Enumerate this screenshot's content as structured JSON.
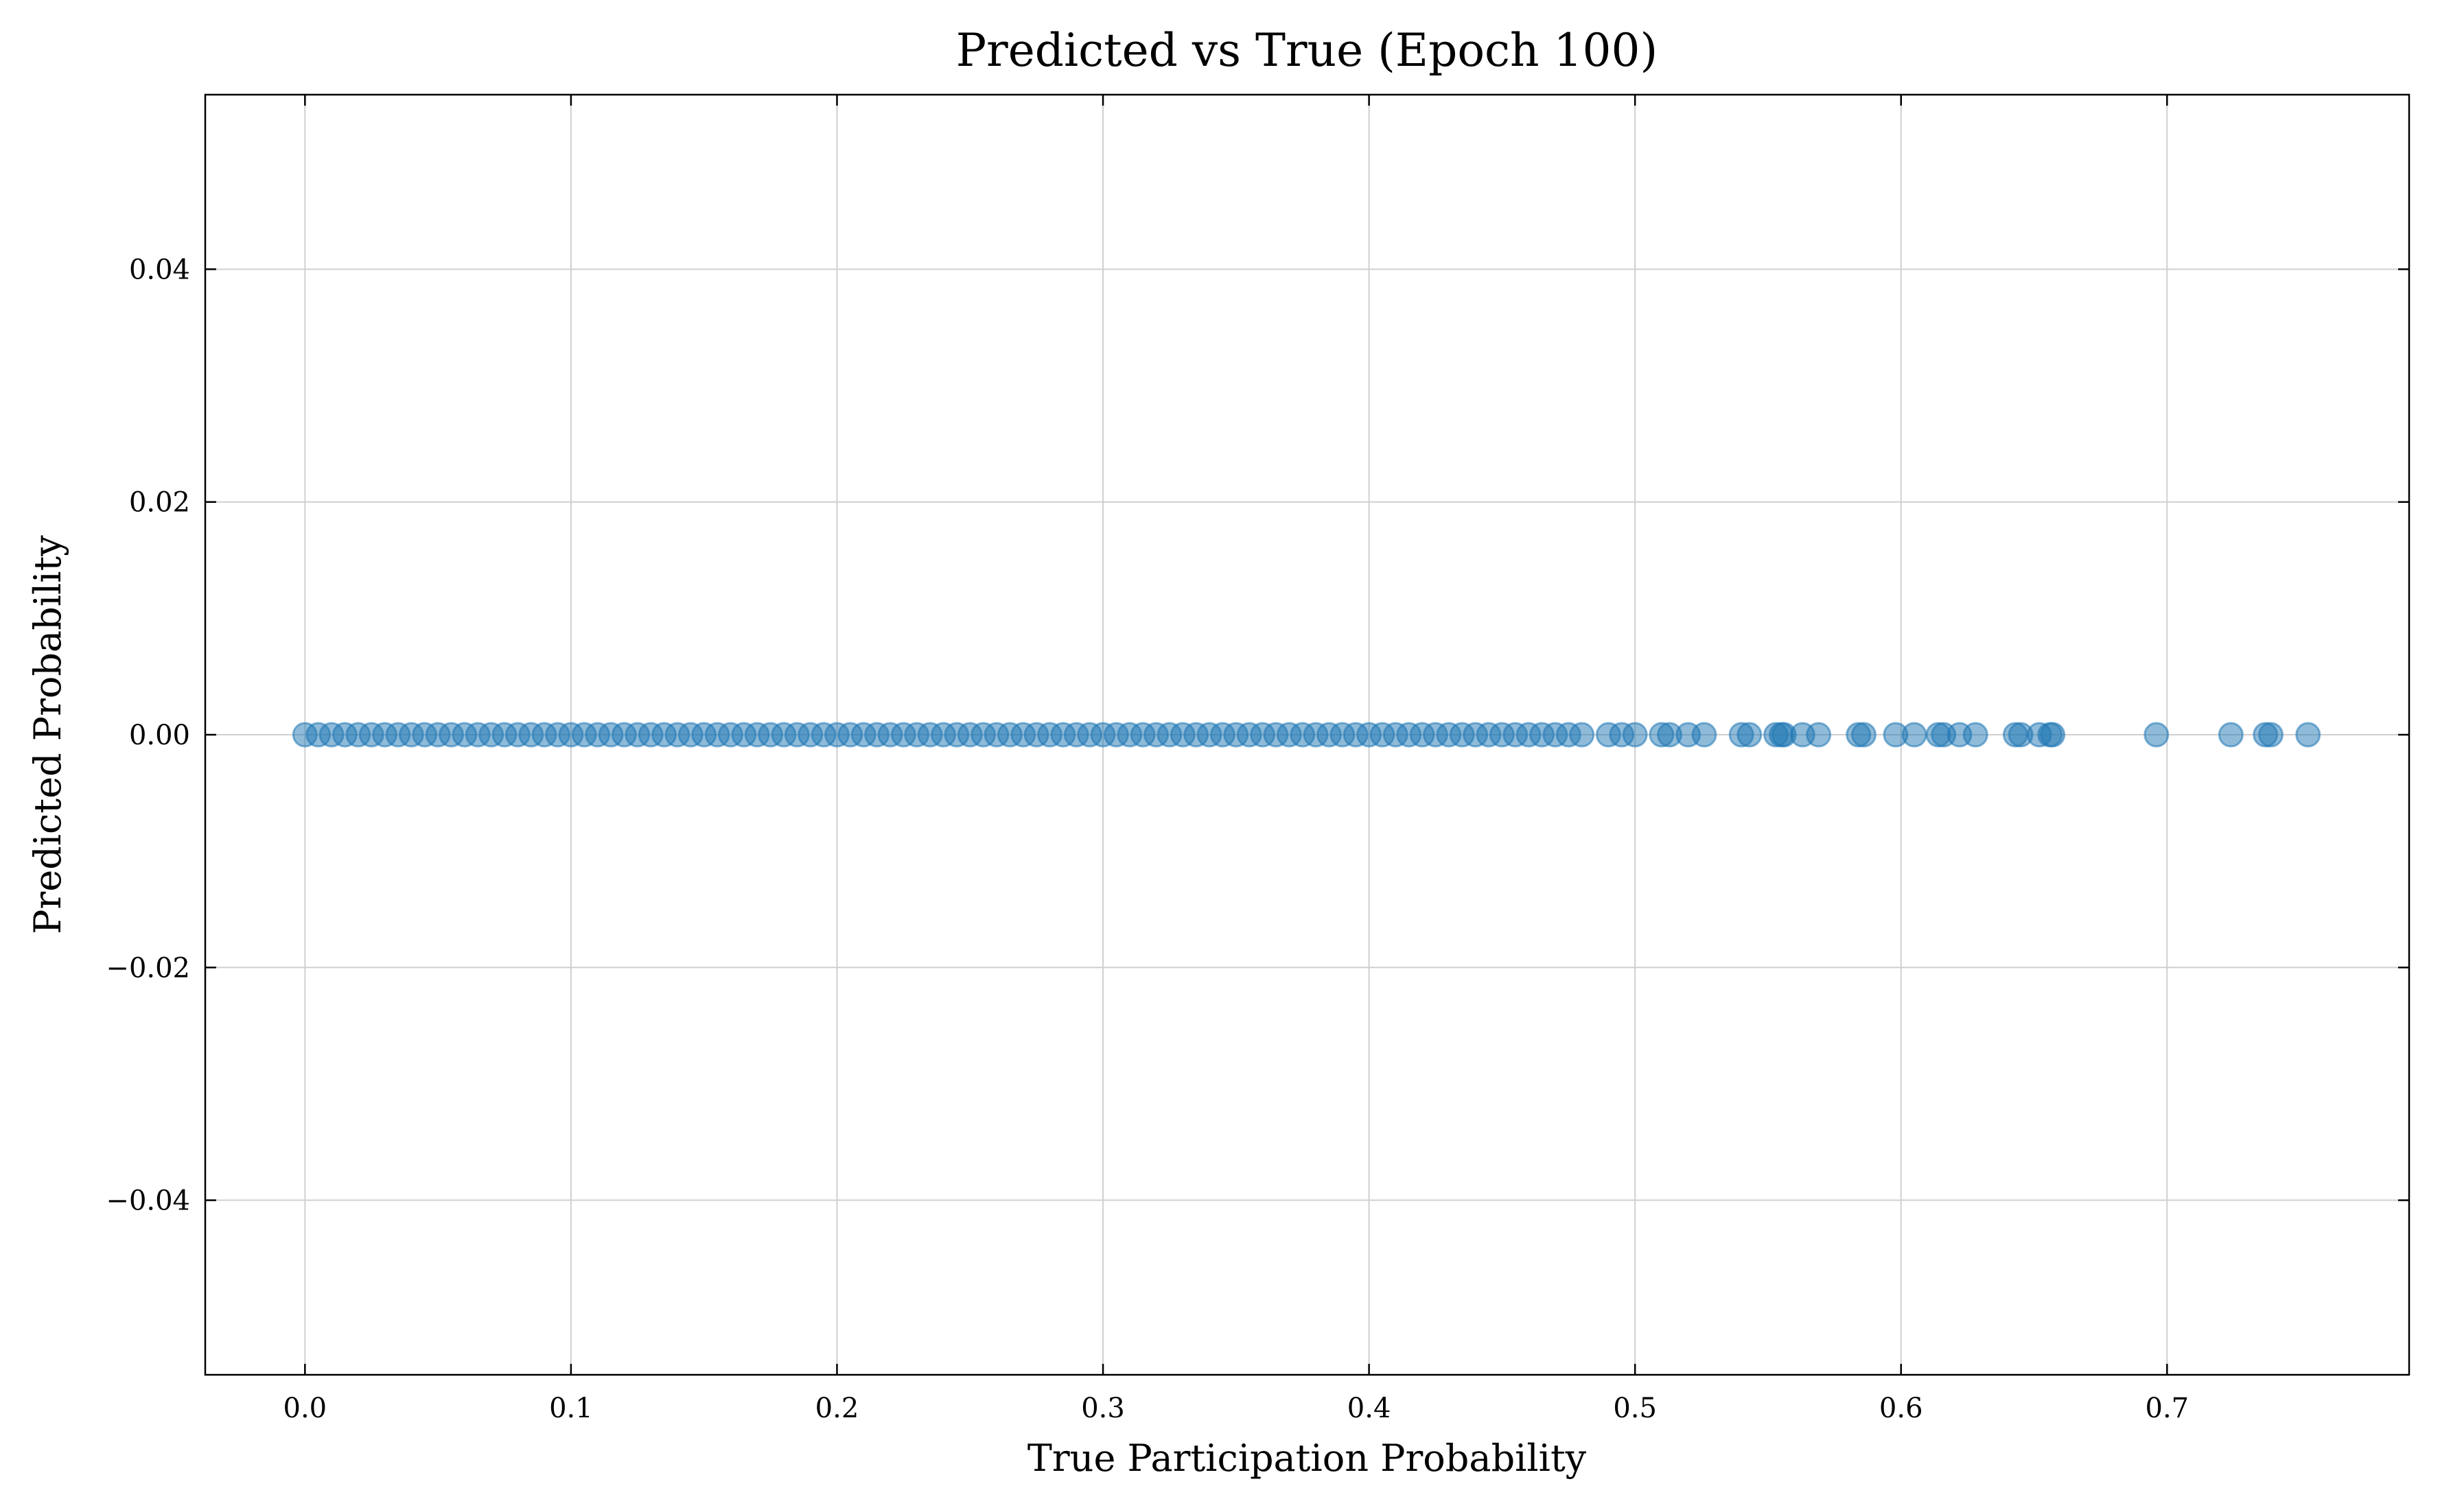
{
  "chart_data": {
    "type": "scatter",
    "title": "Predicted vs True (Epoch 100)",
    "xlabel": "True Participation Probability",
    "ylabel": "Predicted Probability",
    "color": "#1f77b4",
    "grid": true,
    "xlim": [
      -0.0375,
      0.791
    ],
    "ylim": [
      -0.055,
      0.055
    ],
    "xticks": [
      {
        "value": 0,
        "label": "0.0"
      },
      {
        "value": 0.1,
        "label": "0.1"
      },
      {
        "value": 0.2,
        "label": "0.2"
      },
      {
        "value": 0.3,
        "label": "0.3"
      },
      {
        "value": 0.4,
        "label": "0.4"
      },
      {
        "value": 0.5,
        "label": "0.5"
      },
      {
        "value": 0.6,
        "label": "0.6"
      },
      {
        "value": 0.7,
        "label": "0.7"
      }
    ],
    "yticks": [
      {
        "value": -0.04,
        "label": "−0.04"
      },
      {
        "value": -0.02,
        "label": "−0.02"
      },
      {
        "value": 0,
        "label": "0.00"
      },
      {
        "value": 0.02,
        "label": "0.02"
      },
      {
        "value": 0.04,
        "label": "0.04"
      }
    ],
    "x": [
      0,
      0.005,
      0.01,
      0.015,
      0.02,
      0.025,
      0.03,
      0.035,
      0.04,
      0.045,
      0.05,
      0.055,
      0.06,
      0.065,
      0.07,
      0.075,
      0.08,
      0.085,
      0.09,
      0.095,
      0.1,
      0.105,
      0.11,
      0.115,
      0.12,
      0.125,
      0.13,
      0.135,
      0.14,
      0.145,
      0.15,
      0.155,
      0.16,
      0.165,
      0.17,
      0.175,
      0.18,
      0.185,
      0.19,
      0.195,
      0.2,
      0.205,
      0.21,
      0.215,
      0.22,
      0.225,
      0.23,
      0.235,
      0.24,
      0.245,
      0.25,
      0.255,
      0.26,
      0.265,
      0.27,
      0.275,
      0.28,
      0.285,
      0.29,
      0.295,
      0.3,
      0.305,
      0.31,
      0.315,
      0.32,
      0.325,
      0.33,
      0.335,
      0.34,
      0.345,
      0.35,
      0.355,
      0.36,
      0.365,
      0.37,
      0.375,
      0.38,
      0.385,
      0.39,
      0.395,
      0.4,
      0.405,
      0.41,
      0.415,
      0.42,
      0.425,
      0.43,
      0.435,
      0.44,
      0.445,
      0.45,
      0.455,
      0.46,
      0.465,
      0.47,
      0.475,
      0.48,
      0.49,
      0.495,
      0.5,
      0.51,
      0.513,
      0.52,
      0.526,
      0.54,
      0.543,
      0.553,
      0.555,
      0.556,
      0.563,
      0.569,
      0.584,
      0.586,
      0.598,
      0.605,
      0.614,
      0.616,
      0.622,
      0.628,
      0.643,
      0.645,
      0.652,
      0.656,
      0.657,
      0.696,
      0.724,
      0.737,
      0.739,
      0.753
    ],
    "y": [
      0,
      0,
      0,
      0,
      0,
      0,
      0,
      0,
      0,
      0,
      0,
      0,
      0,
      0,
      0,
      0,
      0,
      0,
      0,
      0,
      0,
      0,
      0,
      0,
      0,
      0,
      0,
      0,
      0,
      0,
      0,
      0,
      0,
      0,
      0,
      0,
      0,
      0,
      0,
      0,
      0,
      0,
      0,
      0,
      0,
      0,
      0,
      0,
      0,
      0,
      0,
      0,
      0,
      0,
      0,
      0,
      0,
      0,
      0,
      0,
      0,
      0,
      0,
      0,
      0,
      0,
      0,
      0,
      0,
      0,
      0,
      0,
      0,
      0,
      0,
      0,
      0,
      0,
      0,
      0,
      0,
      0,
      0,
      0,
      0,
      0,
      0,
      0,
      0,
      0,
      0,
      0,
      0,
      0,
      0,
      0,
      0,
      0,
      0,
      0,
      0,
      0,
      0,
      0,
      0,
      0,
      0,
      0,
      0,
      0,
      0,
      0,
      0,
      0,
      0,
      0,
      0,
      0,
      0,
      0,
      0,
      0,
      0,
      0,
      0,
      0,
      0,
      0,
      0
    ]
  }
}
